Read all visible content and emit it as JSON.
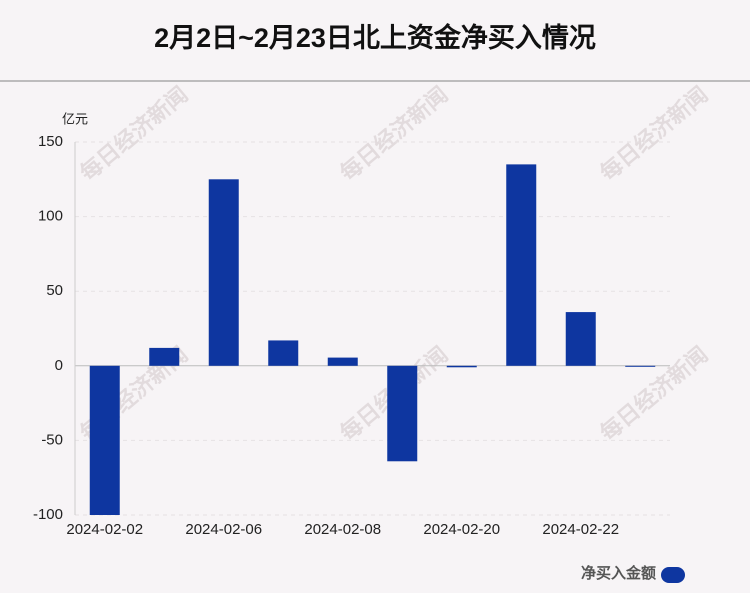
{
  "chart_data": {
    "type": "bar",
    "title": "2月2日~2月23日北上资金净买入情况",
    "y_label": "亿元",
    "watermark": "每日经济新闻",
    "categories": [
      "2024-02-02",
      null,
      "2024-02-06",
      null,
      "2024-02-08",
      null,
      "2024-02-20",
      null,
      "2024-02-22",
      null
    ],
    "series": [
      {
        "name": "净买入金额",
        "color": "#0e36a0",
        "values": [
          -100,
          12,
          125,
          17,
          5.5,
          -64,
          -1,
          135,
          36,
          -0.5
        ]
      }
    ],
    "ylim": [
      -100,
      150
    ],
    "yticks": [
      -100,
      -50,
      0,
      50,
      100,
      150
    ],
    "grid": true
  }
}
